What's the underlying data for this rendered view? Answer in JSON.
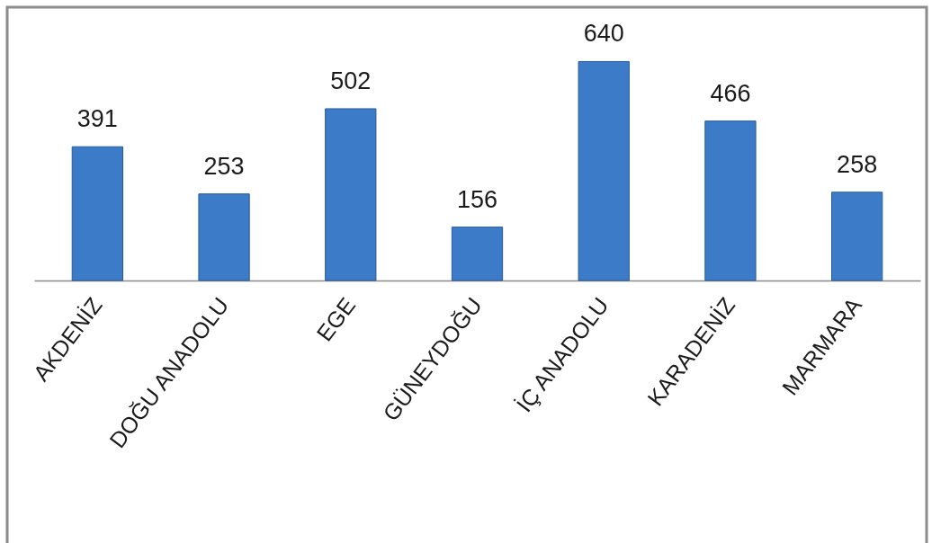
{
  "chart_data": {
    "type": "bar",
    "categories": [
      "AKDENİZ",
      "DOĞU ANADOLU",
      "EGE",
      "GÜNEYDOĞU",
      "İÇ ANADOLU",
      "KARADENİZ",
      "MARMARA"
    ],
    "values": [
      391,
      253,
      502,
      156,
      640,
      466,
      258
    ],
    "color": "#3c7bc8",
    "data_labels": true
  }
}
